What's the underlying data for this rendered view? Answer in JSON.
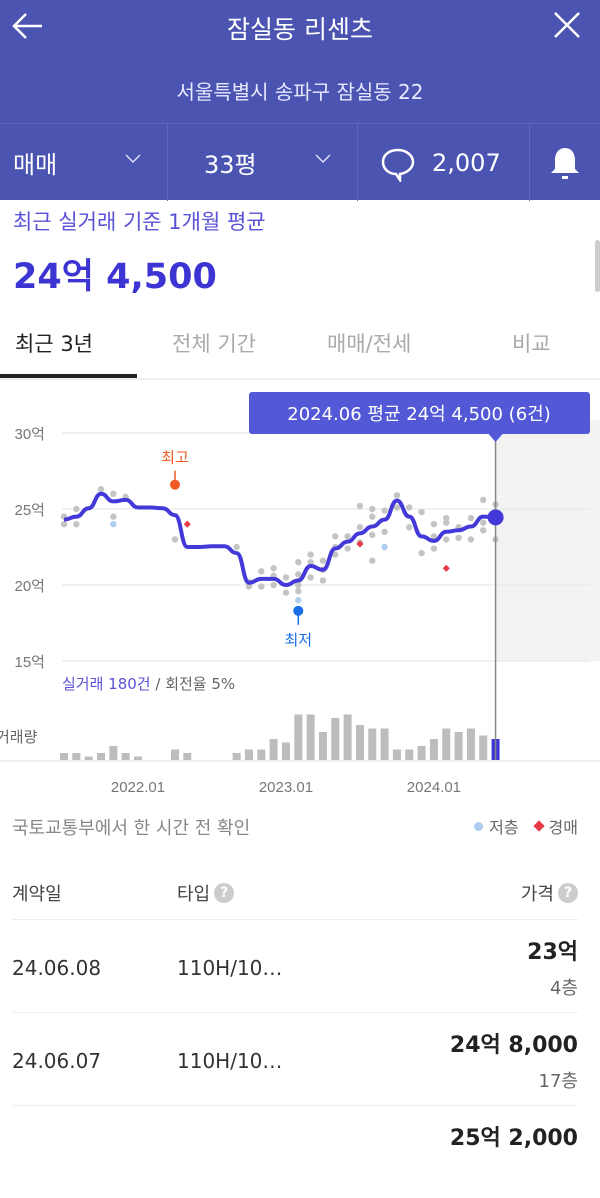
{
  "header": {
    "title": "잠실동 리센츠",
    "address": "서울특별시 송파구 잠실동 22"
  },
  "filters": {
    "deal_type": "매매",
    "size": "33평",
    "comments": "2,007"
  },
  "summary": {
    "label": "최근 실거래 기준 1개월 평균",
    "price": "24억 4,500"
  },
  "tabs": [
    {
      "label": "최근 3년",
      "active": true
    },
    {
      "label": "전체 기간"
    },
    {
      "label": "매매/전세"
    },
    {
      "label": "비교"
    }
  ],
  "chart_data": {
    "type": "line",
    "months": [
      "2021.07",
      "2021.08",
      "2021.09",
      "2021.10",
      "2021.11",
      "2021.12",
      "2022.01",
      "2022.02",
      "2022.03",
      "2022.04",
      "2022.05",
      "2022.06",
      "2022.07",
      "2022.08",
      "2022.09",
      "2022.10",
      "2022.11",
      "2022.12",
      "2023.01",
      "2023.02",
      "2023.03",
      "2023.04",
      "2023.05",
      "2023.06",
      "2023.07",
      "2023.08",
      "2023.09",
      "2023.10",
      "2023.11",
      "2023.12",
      "2024.01",
      "2024.02",
      "2024.03",
      "2024.04",
      "2024.05",
      "2024.06"
    ],
    "average_price": [
      24.3,
      24.5,
      25.05,
      26.0,
      25.5,
      25.6,
      25.1,
      25.1,
      25.05,
      24.6,
      22.5,
      22.5,
      22.55,
      22.55,
      22.1,
      20.15,
      20.4,
      20.4,
      20.0,
      20.3,
      21.25,
      21.0,
      22.4,
      22.85,
      23.4,
      23.85,
      24.3,
      25.55,
      24.5,
      23.2,
      22.9,
      23.5,
      23.6,
      23.85,
      24.5,
      24.45
    ],
    "volume": [
      2,
      2,
      1,
      2,
      4,
      2,
      1,
      0,
      0,
      3,
      2,
      0,
      0,
      0,
      2,
      3,
      3,
      6,
      5,
      13,
      13,
      8,
      12,
      13,
      10,
      9,
      9,
      3,
      3,
      4,
      6,
      9,
      8,
      9,
      7,
      6
    ],
    "trades": [
      [
        0,
        24.0
      ],
      [
        0,
        24.5
      ],
      [
        1,
        24.0
      ],
      [
        1,
        25.0
      ],
      [
        3,
        26.3
      ],
      [
        4,
        26.0
      ],
      [
        4,
        24.5
      ],
      [
        5,
        25.8
      ],
      [
        9,
        23.0
      ],
      [
        14,
        22.5
      ],
      [
        15,
        19.9
      ],
      [
        15,
        20.2
      ],
      [
        16,
        20.9
      ],
      [
        16,
        19.9
      ],
      [
        17,
        21.1
      ],
      [
        17,
        20.0
      ],
      [
        17,
        20.6
      ],
      [
        18,
        19.5
      ],
      [
        18,
        20.5
      ],
      [
        19,
        21.5
      ],
      [
        19,
        20.0
      ],
      [
        19,
        19.6
      ],
      [
        19,
        20.7
      ],
      [
        20,
        22.0
      ],
      [
        20,
        21.5
      ],
      [
        20,
        20.5
      ],
      [
        21,
        21.6
      ],
      [
        21,
        20.3
      ],
      [
        21,
        21.0
      ],
      [
        22,
        23.2
      ],
      [
        22,
        22.5
      ],
      [
        22,
        22.0
      ],
      [
        23,
        23.2
      ],
      [
        23,
        22.4
      ],
      [
        24,
        25.2
      ],
      [
        24,
        23.8
      ],
      [
        24,
        22.8
      ],
      [
        25,
        25.0
      ],
      [
        25,
        24.5
      ],
      [
        25,
        23.3
      ],
      [
        25,
        21.6
      ],
      [
        26,
        24.9
      ],
      [
        26,
        23.5
      ],
      [
        27,
        25.9
      ],
      [
        27,
        25.1
      ],
      [
        28,
        25.1
      ],
      [
        28,
        23.8
      ],
      [
        29,
        24.8
      ],
      [
        29,
        22.1
      ],
      [
        30,
        24.0
      ],
      [
        30,
        22.4
      ],
      [
        30,
        23.2
      ],
      [
        31,
        24.4
      ],
      [
        31,
        23.0
      ],
      [
        31,
        24.1
      ],
      [
        32,
        23.8
      ],
      [
        32,
        23.1
      ],
      [
        33,
        24.4
      ],
      [
        33,
        23.0
      ],
      [
        34,
        25.6
      ],
      [
        34,
        23.6
      ],
      [
        34,
        24.1
      ],
      [
        35,
        25.3
      ],
      [
        35,
        23.0
      ]
    ],
    "low_floor": [
      [
        4,
        24.0
      ],
      [
        19,
        19.0
      ],
      [
        26,
        22.5
      ]
    ],
    "auction": [
      [
        10,
        24.0
      ],
      [
        24,
        22.7
      ],
      [
        31,
        21.1
      ]
    ],
    "high": {
      "month_index": 9,
      "value": 26.6,
      "label": "최고"
    },
    "low": {
      "month_index": 19,
      "value": 18.3,
      "label": "최저"
    },
    "y_ticks": [
      {
        "v": 30,
        "label": "30억"
      },
      {
        "v": 25,
        "label": "25억"
      },
      {
        "v": 20,
        "label": "20억"
      },
      {
        "v": 15,
        "label": "15억"
      }
    ],
    "x_ticks": [
      {
        "i": 6,
        "label": "2022.01"
      },
      {
        "i": 18,
        "label": "2023.01"
      },
      {
        "i": 30,
        "label": "2024.01"
      }
    ],
    "ylim": [
      15,
      30
    ],
    "tooltip": "2024.06 평균 24억 4,500 (6건)",
    "stats_count": "실거래 180건",
    "stats_rate": " / 회전율 5%",
    "volume_label": "거래량",
    "line_color": "#4338d8"
  },
  "source_note": "국토교통부에서 한 시간 전 확인",
  "legend": {
    "low_floor": "저층",
    "auction": "경매"
  },
  "table": {
    "headers": {
      "date": "계약일",
      "type": "타입",
      "price": "가격"
    },
    "rows": [
      {
        "date": "24.06.08",
        "type": "110H/10…",
        "price": "23억",
        "floor": "4층"
      },
      {
        "date": "24.06.07",
        "type": "110H/10…",
        "price": "24억 8,000",
        "floor": "17층"
      },
      {
        "price": "25억 2,000"
      }
    ]
  }
}
